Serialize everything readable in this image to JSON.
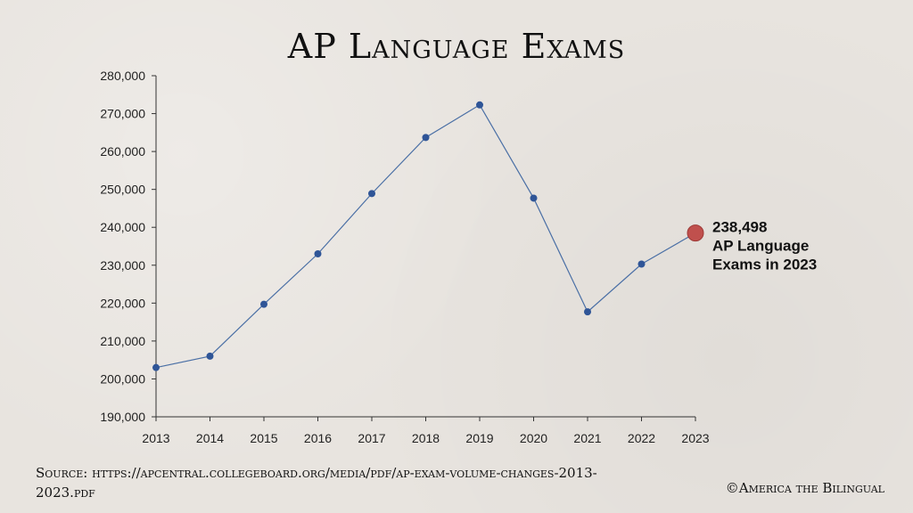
{
  "title": "AP Language Exams",
  "source": "Source: https://apcentral.collegeboard.org/media/pdf/ap-exam-volume-changes-2013-2023.pdf",
  "copyright": "©America the Bilingual",
  "colors": {
    "line": "#4a6fa5",
    "marker": "#2f5597",
    "highlight": "#c0504d",
    "axis": "#333333"
  },
  "chart_data": {
    "type": "line",
    "title": "AP Language Exams",
    "xlabel": "",
    "ylabel": "",
    "categories": [
      "2013",
      "2014",
      "2015",
      "2016",
      "2017",
      "2018",
      "2019",
      "2020",
      "2021",
      "2022",
      "2023"
    ],
    "series": [
      {
        "values": [
          203000,
          206000,
          219700,
          233000,
          248900,
          263700,
          272300,
          247700,
          217700,
          230300,
          238498
        ]
      }
    ],
    "ylim": [
      190000,
      280000
    ],
    "yticks": [
      "190,000",
      "200,000",
      "210,000",
      "220,000",
      "230,000",
      "240,000",
      "250,000",
      "260,000",
      "270,000",
      "280,000"
    ],
    "grid": false,
    "annotation": {
      "category": "2023",
      "lines": [
        "238,498",
        "AP Language",
        "Exams in 2023"
      ]
    }
  }
}
